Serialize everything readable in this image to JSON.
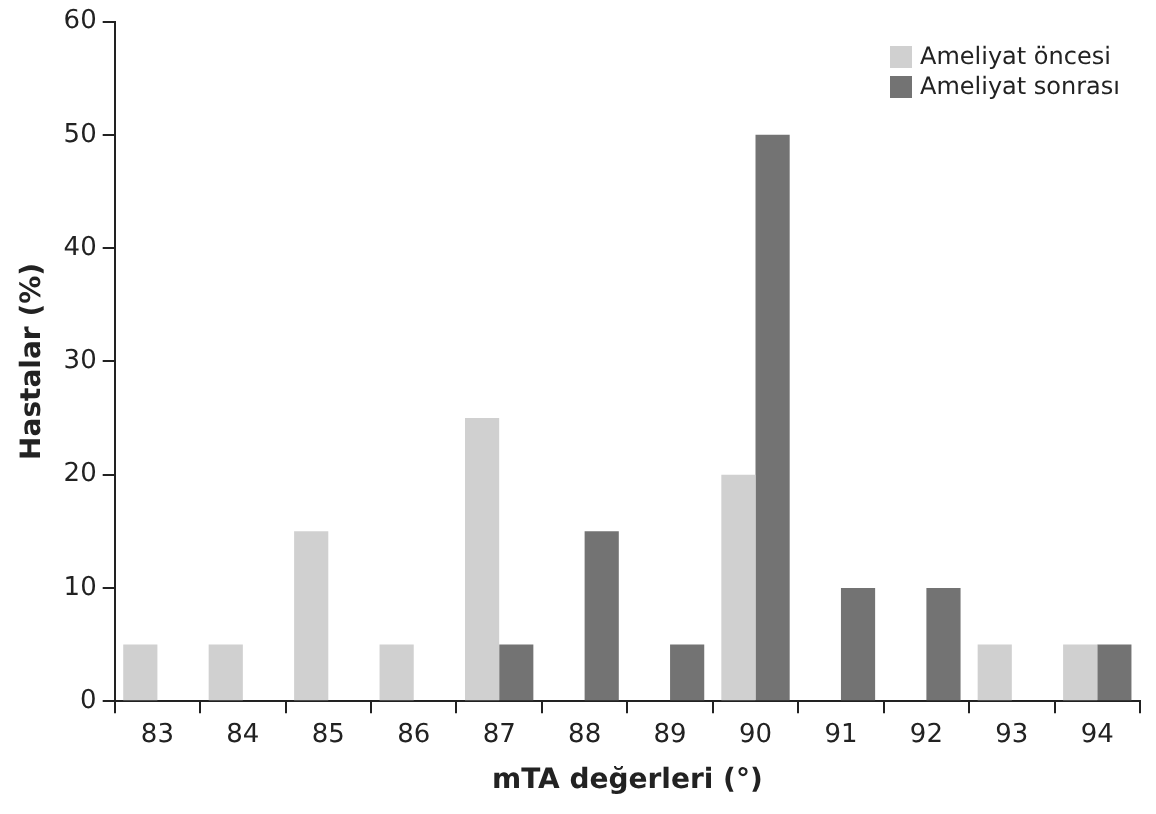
{
  "chart_data": {
    "type": "bar",
    "xlabel": "mTA değerleri (°)",
    "ylabel": "Hastalar (%)",
    "categories": [
      "83",
      "84",
      "85",
      "86",
      "87",
      "88",
      "89",
      "90",
      "91",
      "92",
      "93",
      "94"
    ],
    "series": [
      {
        "name": "Ameliyat öncesi",
        "color": "#d0d0d0",
        "values": [
          5,
          5,
          15,
          5,
          25,
          0,
          0,
          20,
          0,
          0,
          5,
          5
        ]
      },
      {
        "name": "Ameliyat sonrası",
        "color": "#737373",
        "values": [
          0,
          0,
          0,
          0,
          5,
          15,
          5,
          50,
          10,
          10,
          0,
          5
        ]
      }
    ],
    "ylim": [
      0,
      60
    ],
    "yticks": [
      0,
      10,
      20,
      30,
      40,
      50,
      60
    ],
    "grid": false,
    "legend": "top right"
  }
}
